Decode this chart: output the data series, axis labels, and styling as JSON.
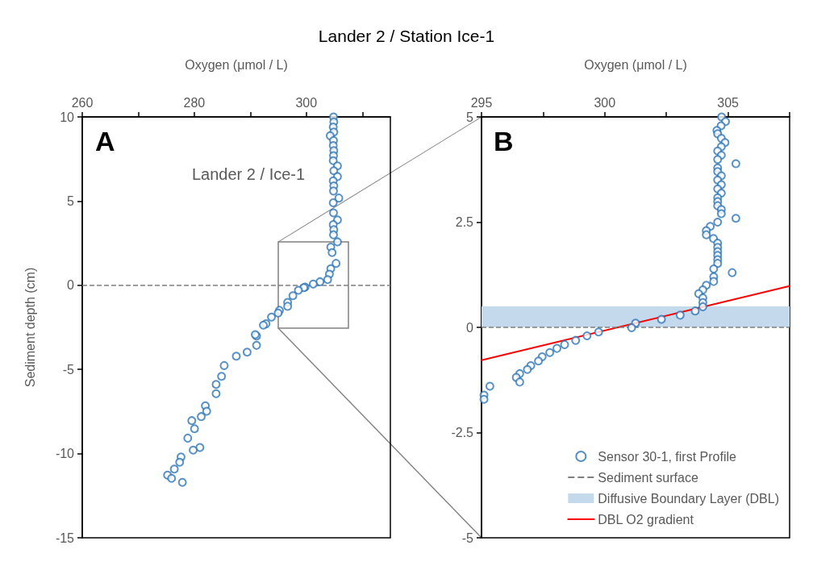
{
  "chart_data": [
    {
      "type": "scatter",
      "title": "Lander 2 / Station Ice-1",
      "xlabel": "Oxygen (μmol / L)",
      "ylabel": "Sediment depth (cm)",
      "annotations": [
        "A",
        "Lander 2 / Ice-1"
      ],
      "series": [
        {
          "color": "#2e75b6",
          "x": [
            304.85,
            304.9,
            304.8,
            304.9,
            304.26,
            304.85,
            304.8,
            304.9,
            304.85,
            304.8,
            305.56,
            304.9,
            305.56,
            304.8,
            304.9,
            304.85,
            305.8,
            304.8,
            304.85,
            305.56,
            304.8,
            304.9,
            304.85,
            305.56,
            304.36,
            304.6,
            305.3,
            304.36,
            304.12,
            303.8,
            302.44,
            301.23,
            299.78,
            299.55,
            298.58,
            297.6,
            296.66,
            296.66,
            295.2,
            294.97,
            293.77,
            292.8,
            292.33,
            291.11,
            290.88,
            291.11,
            289.43,
            287.5,
            285.33,
            284.86,
            283.89,
            283.89,
            281.97,
            282.21,
            281.24,
            279.55,
            280.04,
            278.83,
            281.0,
            279.8,
            277.63,
            277.39,
            276.43,
            275.22,
            275.94,
            277.87
          ],
          "values": [
            10.0,
            9.7,
            9.4,
            9.1,
            8.88,
            8.6,
            8.3,
            8.0,
            7.7,
            7.4,
            7.09,
            6.8,
            6.46,
            6.2,
            5.9,
            5.6,
            5.18,
            4.9,
            4.3,
            3.88,
            3.6,
            3.3,
            3.0,
            2.58,
            2.26,
            1.94,
            1.3,
            0.98,
            0.66,
            0.34,
            0.21,
            0.07,
            -0.11,
            -0.14,
            -0.3,
            -0.62,
            -1.02,
            -1.25,
            -1.49,
            -1.65,
            -1.89,
            -2.29,
            -2.37,
            -3.01,
            -2.93,
            -3.57,
            -3.97,
            -4.21,
            -4.77,
            -5.41,
            -5.89,
            -6.44,
            -7.16,
            -7.48,
            -7.8,
            -8.04,
            -8.52,
            -9.08,
            -9.64,
            -9.79,
            -10.2,
            -10.51,
            -10.92,
            -11.28,
            -11.47,
            -11.71
          ]
        }
      ],
      "xlim": [
        260,
        315
      ],
      "xticks": [
        260,
        {
          "value": 270,
          "label": null
        },
        280,
        {
          "value": 290,
          "label": null
        },
        300,
        {
          "value": 310,
          "label": null
        }
      ],
      "ylim": [
        -15,
        10
      ],
      "yticks": [
        -15,
        -10,
        -5,
        0,
        5,
        10
      ],
      "ref_lines": [
        {
          "axis": "y",
          "value": 0,
          "label": null,
          "color": "#7f7f7f",
          "line_style": "dashed"
        }
      ],
      "marker": "circle",
      "grid": false,
      "legend": false
    },
    {
      "type": "scatter",
      "xlabel": "Oxygen (μmol / L)",
      "annotations": [
        "B"
      ],
      "series": [
        {
          "name": "Sensor 30-1, first Profile",
          "color": "#2e75b6",
          "x": [
            304.74,
            304.9,
            304.72,
            304.55,
            304.58,
            304.73,
            304.88,
            304.73,
            304.58,
            304.73,
            304.58,
            305.32,
            304.58,
            304.58,
            304.73,
            304.58,
            304.73,
            304.58,
            304.73,
            304.58,
            304.58,
            304.58,
            304.73,
            304.73,
            305.32,
            304.58,
            304.28,
            304.12,
            304.12,
            304.41,
            304.58,
            304.58,
            304.58,
            304.58,
            304.58,
            304.58,
            305.17,
            304.42,
            304.42,
            304.42,
            304.12,
            303.98,
            303.81,
            303.98,
            303.98,
            303.98,
            303.67,
            303.06,
            302.3,
            301.25,
            301.09,
            299.75,
            299.28,
            298.82,
            298.37,
            298.06,
            297.77,
            297.46,
            297.31,
            297.0,
            296.86,
            296.55,
            296.41,
            296.55,
            295.34,
            295.1,
            295.1
          ],
          "values": [
            5.0,
            4.89,
            4.79,
            4.68,
            4.6,
            4.49,
            4.39,
            4.29,
            4.19,
            4.09,
            3.99,
            3.89,
            3.79,
            3.7,
            3.6,
            3.5,
            3.39,
            3.29,
            3.19,
            3.08,
            2.99,
            2.89,
            2.8,
            2.7,
            2.59,
            2.5,
            2.4,
            2.3,
            2.2,
            2.11,
            2.0,
            1.9,
            1.8,
            1.71,
            1.61,
            1.52,
            1.3,
            1.39,
            1.2,
            1.09,
            1.0,
            0.89,
            0.8,
            0.7,
            0.59,
            0.49,
            0.39,
            0.29,
            0.19,
            0.1,
            -0.01,
            -0.11,
            -0.2,
            -0.31,
            -0.41,
            -0.5,
            -0.6,
            -0.7,
            -0.8,
            -0.91,
            -1.0,
            -1.1,
            -1.19,
            -1.3,
            -1.4,
            -1.61,
            -1.71
          ]
        },
        {
          "name": "DBL O2 gradient",
          "type": "line",
          "marker": "none",
          "color": "#ff0000",
          "x": [
            295,
            307.5
          ],
          "values": [
            -0.78,
            0.98
          ]
        }
      ],
      "xlim": [
        295,
        307.5
      ],
      "xticks": [
        295,
        {
          "value": 297.5,
          "label": null
        },
        300,
        {
          "value": 302.5,
          "label": null
        },
        305,
        {
          "value": 307.5,
          "label": null
        }
      ],
      "ylim": [
        -5,
        5
      ],
      "yticks": [
        -5,
        -2.5,
        0,
        2.5,
        5
      ],
      "ref_lines": [
        {
          "axis": "y",
          "value": 0,
          "label": "Sediment surface",
          "color": "#7f7f7f",
          "line_style": "dashed"
        }
      ],
      "bands": [
        {
          "axis": "y",
          "from": 0,
          "to": 0.5,
          "label": "Diffusive Boundary Layer (DBL)",
          "color": "#c5d9ed"
        }
      ],
      "marker": "circle",
      "grid": false,
      "legend": "bottom right"
    }
  ]
}
